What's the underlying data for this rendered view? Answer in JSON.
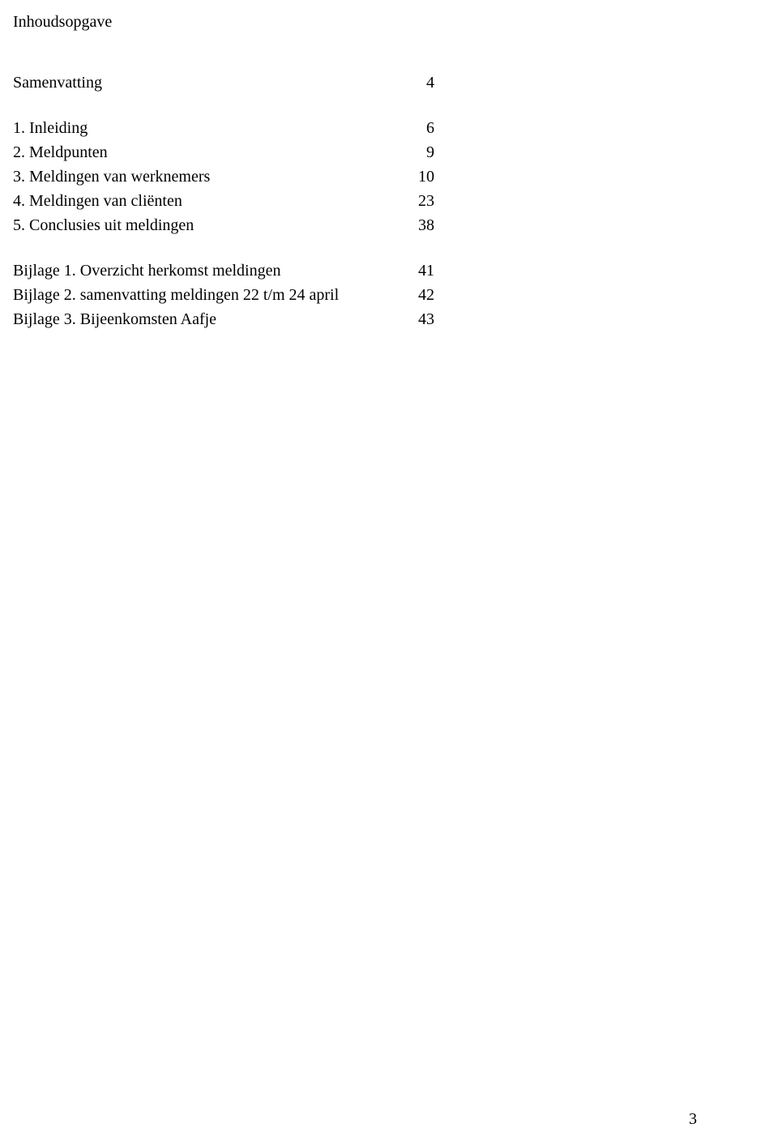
{
  "title": "Inhoudsopgave",
  "section1": {
    "rows": [
      {
        "label": "Samenvatting",
        "page": "4"
      }
    ]
  },
  "section2": {
    "rows": [
      {
        "label": "1.  Inleiding",
        "page": "6"
      },
      {
        "label": "2.  Meldpunten",
        "page": "9"
      },
      {
        "label": "3.  Meldingen van werknemers",
        "page": "10"
      },
      {
        "label": "4.  Meldingen van cliënten",
        "page": "23"
      },
      {
        "label": "5.  Conclusies uit meldingen",
        "page": "38"
      }
    ]
  },
  "section3": {
    "rows": [
      {
        "label": "Bijlage 1. Overzicht herkomst meldingen",
        "page": "41"
      },
      {
        "label": "Bijlage 2. samenvatting meldingen 22 t/m 24 april",
        "page": "42"
      },
      {
        "label": "Bijlage 3. Bijeenkomsten Aafje",
        "page": "43"
      }
    ]
  },
  "pageNumber": "3"
}
